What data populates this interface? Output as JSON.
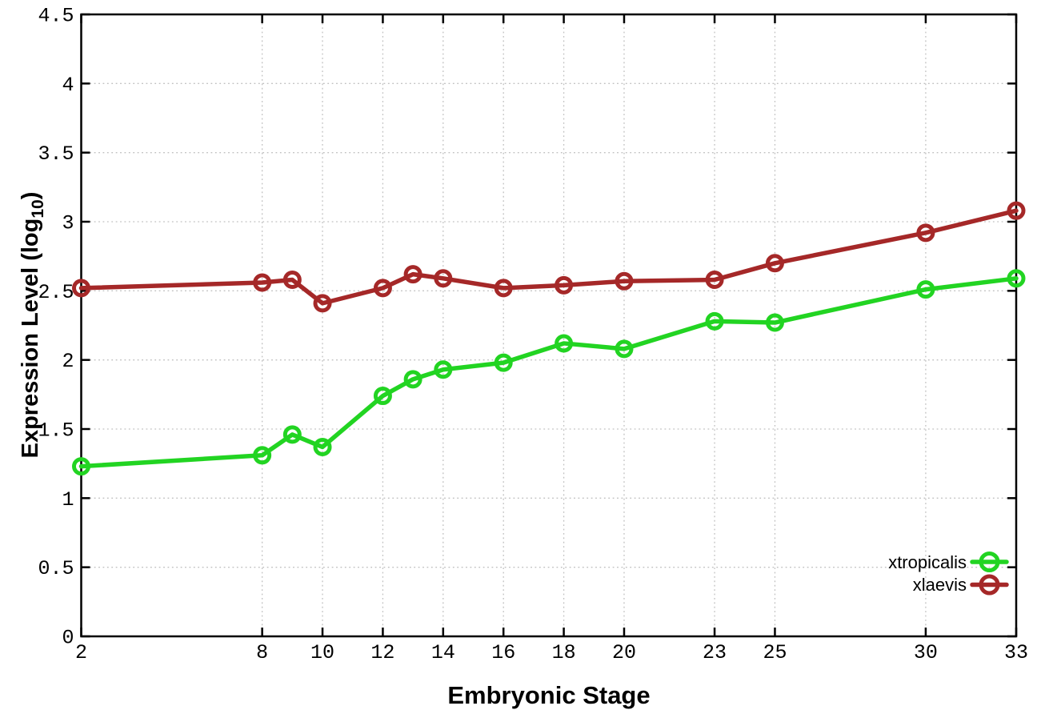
{
  "chart_data": {
    "type": "line",
    "title": "",
    "xlabel": "Embryonic Stage",
    "ylabel": "Expression Level (log10)",
    "ylabel_parts": {
      "pre": "Expression Level (log",
      "sub": "10",
      "post": ")"
    },
    "x": [
      2,
      8,
      9,
      10,
      12,
      13,
      14,
      16,
      18,
      20,
      23,
      25,
      30,
      33
    ],
    "series": [
      {
        "name": "xtropicalis",
        "color": "#22d422",
        "values": [
          1.23,
          1.31,
          1.46,
          1.37,
          1.74,
          1.86,
          1.93,
          1.98,
          2.12,
          2.08,
          2.28,
          2.27,
          2.51,
          2.59
        ]
      },
      {
        "name": "xlaevis",
        "color": "#a52828",
        "values": [
          2.52,
          2.56,
          2.58,
          2.41,
          2.52,
          2.62,
          2.59,
          2.52,
          2.54,
          2.57,
          2.58,
          2.7,
          2.92,
          3.08
        ]
      }
    ],
    "xlim": [
      2,
      33
    ],
    "ylim": [
      0,
      4.5
    ],
    "xticks": {
      "values": [
        2,
        8,
        10,
        12,
        14,
        16,
        18,
        20,
        23,
        25,
        30,
        33
      ],
      "labels": [
        "2",
        "8",
        "10",
        "12",
        "14",
        "16",
        "18",
        "20",
        "23",
        "25",
        "30",
        "33"
      ]
    },
    "yticks": {
      "values": [
        0,
        0.5,
        1,
        1.5,
        2,
        2.5,
        3,
        3.5,
        4,
        4.5
      ],
      "labels": [
        "0",
        "0.5",
        "1",
        "1.5",
        "2",
        "2.5",
        "3",
        "3.5",
        "4",
        "4.5"
      ]
    },
    "grid": true,
    "legend": {
      "position": "bottom-right",
      "entries": [
        "xtropicalis",
        "xlaevis"
      ]
    },
    "colors": {
      "background": "#ffffff",
      "axis": "#000000",
      "grid": "#c0c0c0"
    }
  }
}
